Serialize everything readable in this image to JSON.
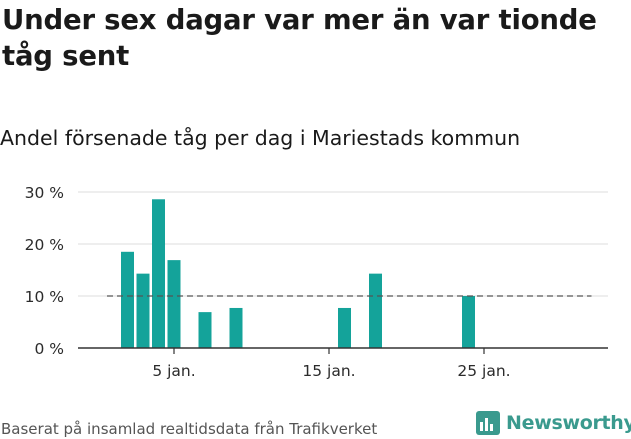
{
  "title": "Under sex dagar var mer än var tionde tåg sent",
  "subtitle": "Andel försenade tåg per dag i Mariestads kommun",
  "source": "Baserat på insamlad realtidsdata från Trafikverket",
  "brand": "Newsworthy",
  "colors": {
    "bar": "#14a39a",
    "reference": "#555555",
    "grid": "#dddddd",
    "brand": "#3a9a8e"
  },
  "chart_data": {
    "type": "bar",
    "x": [
      2,
      3,
      4,
      5,
      7,
      9,
      16,
      18,
      24
    ],
    "values": [
      18.5,
      14.3,
      28.6,
      16.9,
      6.9,
      7.7,
      7.7,
      14.3,
      10.0
    ],
    "x_range": [
      1,
      32
    ],
    "ylim": [
      0,
      30
    ],
    "y_ticks": [
      0,
      10,
      20,
      30
    ],
    "y_tick_labels": [
      "0 %",
      "10 %",
      "20 %",
      "30 %"
    ],
    "x_ticks": [
      5,
      15,
      25
    ],
    "x_tick_labels": [
      "5 jan.",
      "15 jan.",
      "25 jan."
    ],
    "reference_line": 10,
    "grid": true,
    "legend": "none"
  }
}
